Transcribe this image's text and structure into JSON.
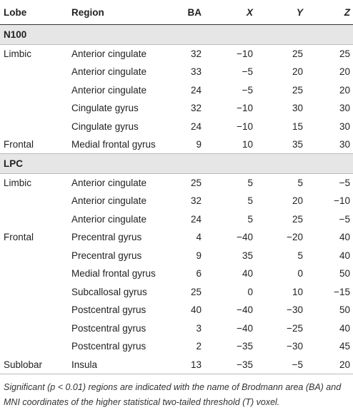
{
  "table": {
    "headers": {
      "lobe": "Lobe",
      "region": "Region",
      "ba": "BA",
      "x": "X",
      "y": "Y",
      "z": "Z"
    },
    "sections": [
      {
        "title": "N100",
        "rows": [
          {
            "lobe": "Limbic",
            "region": "Anterior cingulate",
            "ba": "32",
            "x": "−10",
            "y": "25",
            "z": "25"
          },
          {
            "lobe": "",
            "region": "Anterior cingulate",
            "ba": "33",
            "x": "−5",
            "y": "20",
            "z": "20"
          },
          {
            "lobe": "",
            "region": "Anterior cingulate",
            "ba": "24",
            "x": "−5",
            "y": "25",
            "z": "20"
          },
          {
            "lobe": "",
            "region": "Cingulate gyrus",
            "ba": "32",
            "x": "−10",
            "y": "30",
            "z": "30"
          },
          {
            "lobe": "",
            "region": "Cingulate gyrus",
            "ba": "24",
            "x": "−10",
            "y": "15",
            "z": "30"
          },
          {
            "lobe": "Frontal",
            "region": "Medial frontal gyrus",
            "ba": "9",
            "x": "10",
            "y": "35",
            "z": "30"
          }
        ]
      },
      {
        "title": "LPC",
        "rows": [
          {
            "lobe": "Limbic",
            "region": "Anterior cingulate",
            "ba": "25",
            "x": "5",
            "y": "5",
            "z": "−5"
          },
          {
            "lobe": "",
            "region": "Anterior cingulate",
            "ba": "32",
            "x": "5",
            "y": "20",
            "z": "−10"
          },
          {
            "lobe": "",
            "region": "Anterior cingulate",
            "ba": "24",
            "x": "5",
            "y": "25",
            "z": "−5"
          },
          {
            "lobe": "Frontal",
            "region": "Precentral gyrus",
            "ba": "4",
            "x": "−40",
            "y": "−20",
            "z": "40"
          },
          {
            "lobe": "",
            "region": "Precentral gyrus",
            "ba": "9",
            "x": "35",
            "y": "5",
            "z": "40"
          },
          {
            "lobe": "",
            "region": "Medial frontal gyrus",
            "ba": "6",
            "x": "40",
            "y": "0",
            "z": "50"
          },
          {
            "lobe": "",
            "region": "Subcallosal gyrus",
            "ba": "25",
            "x": "0",
            "y": "10",
            "z": "−15"
          },
          {
            "lobe": "",
            "region": "Postcentral gyrus",
            "ba": "40",
            "x": "−40",
            "y": "−30",
            "z": "50"
          },
          {
            "lobe": "",
            "region": "Postcentral gyrus",
            "ba": "3",
            "x": "−40",
            "y": "−25",
            "z": "40"
          },
          {
            "lobe": "",
            "region": "Postcentral gyrus",
            "ba": "2",
            "x": "−35",
            "y": "−30",
            "z": "45"
          },
          {
            "lobe": "Sublobar",
            "region": "Insula",
            "ba": "13",
            "x": "−35",
            "y": "−5",
            "z": "20"
          }
        ]
      }
    ]
  },
  "footnote": "Significant (p < 0.01) regions are indicated with the name of Brodmann area (BA) and MNI coordinates of the higher statistical two-tailed threshold (T) voxel."
}
